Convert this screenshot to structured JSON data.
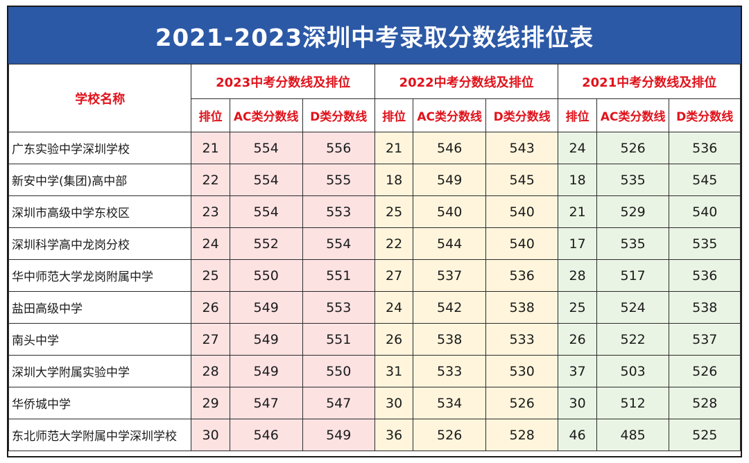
{
  "title": "2021-2023深圳中考录取分数线排位表",
  "header": {
    "school_col": "学校名称",
    "year_groups": [
      "2023中考分数线及排位",
      "2022中考分数线及排位",
      "2021中考分数线及排位"
    ],
    "sub_cols": [
      "排位",
      "AC类分数线",
      "D类分数线"
    ]
  },
  "colors": {
    "title_bg": "#2c59a6",
    "header_text": "#e0121b",
    "y2023_bg": "#fde2e2",
    "y2022_bg": "#fef5dc",
    "y2021_bg": "#eaf4e4"
  },
  "rows": [
    {
      "school": "广东实验中学深圳学校",
      "v": [
        "21",
        "554",
        "556",
        "21",
        "546",
        "543",
        "24",
        "526",
        "536"
      ]
    },
    {
      "school": "新安中学(集团)高中部",
      "v": [
        "22",
        "554",
        "555",
        "18",
        "549",
        "545",
        "18",
        "535",
        "545"
      ]
    },
    {
      "school": "深圳市高级中学东校区",
      "v": [
        "23",
        "554",
        "553",
        "25",
        "540",
        "540",
        "21",
        "529",
        "540"
      ]
    },
    {
      "school": "深圳科学高中龙岗分校",
      "v": [
        "24",
        "552",
        "554",
        "22",
        "544",
        "540",
        "17",
        "535",
        "535"
      ]
    },
    {
      "school": "华中师范大学龙岗附属中学",
      "v": [
        "25",
        "550",
        "551",
        "27",
        "537",
        "536",
        "28",
        "517",
        "536"
      ]
    },
    {
      "school": "盐田高级中学",
      "v": [
        "26",
        "549",
        "553",
        "24",
        "542",
        "538",
        "25",
        "524",
        "538"
      ]
    },
    {
      "school": "南头中学",
      "v": [
        "27",
        "549",
        "551",
        "26",
        "538",
        "533",
        "26",
        "522",
        "537"
      ]
    },
    {
      "school": "深圳大学附属实验中学",
      "v": [
        "28",
        "549",
        "550",
        "31",
        "533",
        "530",
        "37",
        "503",
        "526"
      ]
    },
    {
      "school": "华侨城中学",
      "v": [
        "29",
        "547",
        "547",
        "30",
        "534",
        "526",
        "30",
        "512",
        "528"
      ]
    },
    {
      "school": "东北师范大学附属中学深圳学校",
      "v": [
        "30",
        "546",
        "549",
        "36",
        "526",
        "528",
        "46",
        "485",
        "525"
      ]
    }
  ]
}
